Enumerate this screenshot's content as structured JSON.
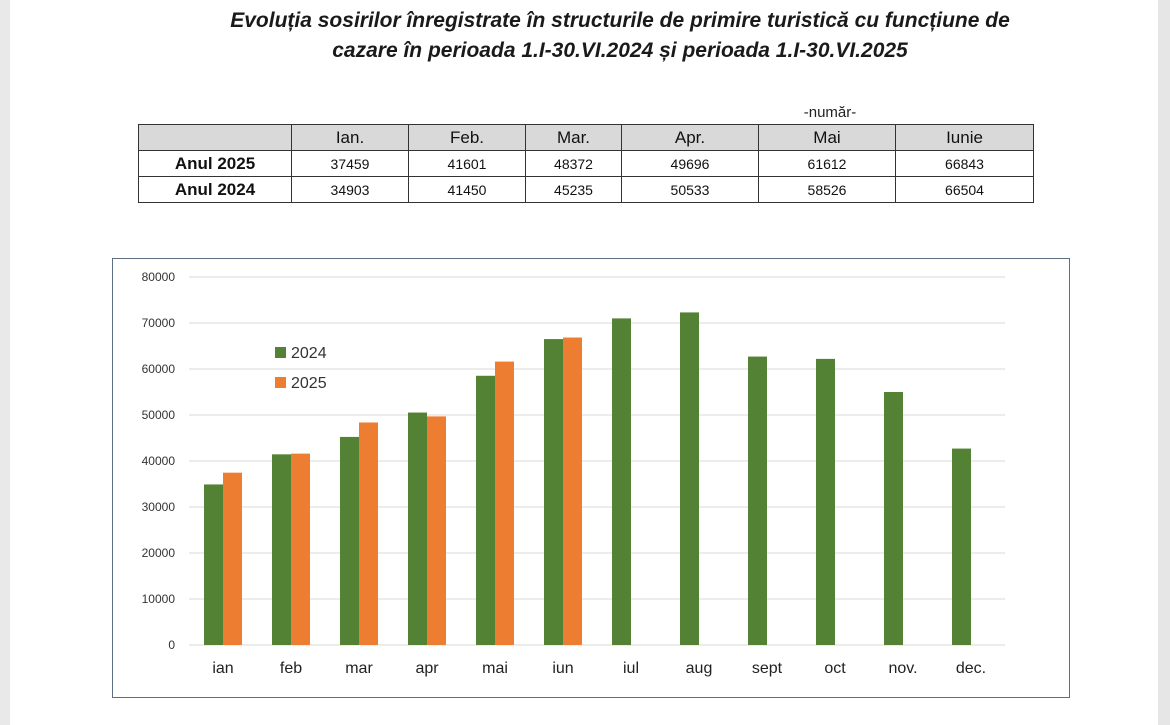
{
  "title": {
    "line1": "Evoluția sosirilor înregistrate în structurile de primire turistică cu funcțiune de",
    "line2": "cazare în perioada 1.I-30.VI.2024 și perioada 1.I-30.VI.2025"
  },
  "table": {
    "unit_label": "-număr-",
    "headers": [
      "",
      "Ian.",
      "Feb.",
      "Mar.",
      "Apr.",
      "Mai",
      "Iunie"
    ],
    "rows": [
      {
        "label": "Anul 2025",
        "values": [
          "37459",
          "41601",
          "48372",
          "49696",
          "61612",
          "66843"
        ]
      },
      {
        "label": "Anul 2024",
        "values": [
          "34903",
          "41450",
          "45235",
          "50533",
          "58526",
          "66504"
        ]
      }
    ]
  },
  "colors": {
    "series_2024": "#548235",
    "series_2025": "#ed7d31",
    "grid": "#d9d9d9"
  },
  "chart_data": {
    "type": "bar",
    "title": "",
    "xlabel": "",
    "ylabel": "",
    "ylim": [
      0,
      80000
    ],
    "yticks": [
      0,
      10000,
      20000,
      30000,
      40000,
      50000,
      60000,
      70000,
      80000
    ],
    "grid": true,
    "legend_position": "top-left",
    "categories": [
      "ian",
      "feb",
      "mar",
      "apr",
      "mai",
      "iun",
      "iul",
      "aug",
      "sept",
      "oct",
      "nov.",
      "dec."
    ],
    "series": [
      {
        "name": "2024",
        "values": [
          34903,
          41450,
          45235,
          50533,
          58526,
          66504,
          71000,
          72300,
          62700,
          62200,
          55000,
          42700
        ]
      },
      {
        "name": "2025",
        "values": [
          37459,
          41601,
          48372,
          49696,
          61612,
          66843,
          null,
          null,
          null,
          null,
          null,
          null
        ]
      }
    ]
  }
}
